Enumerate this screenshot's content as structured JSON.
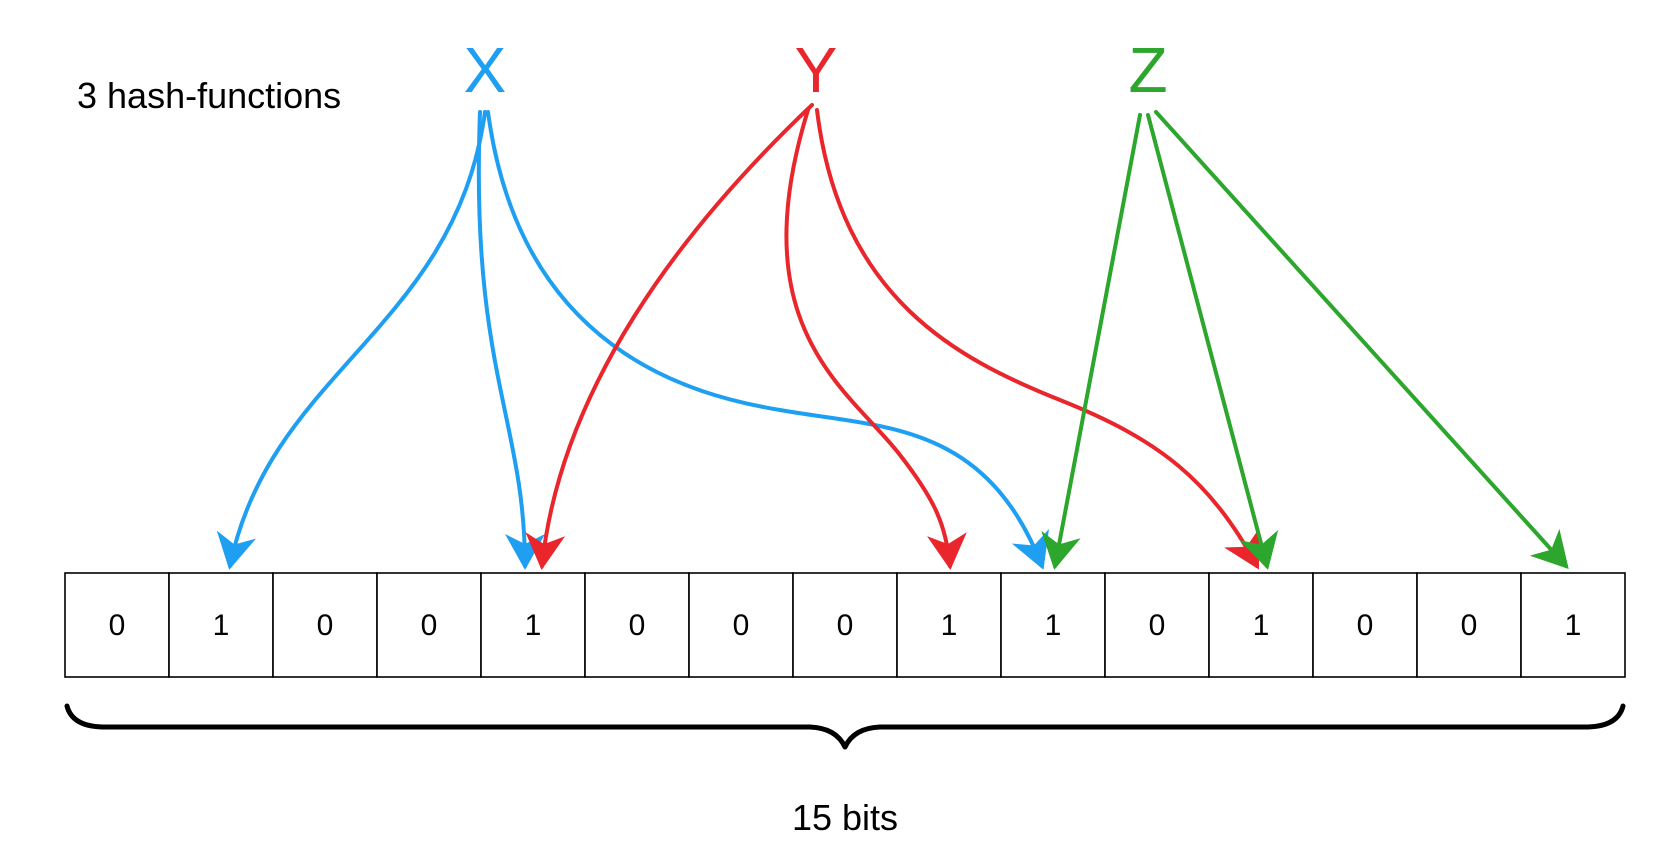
{
  "caption": "3 hash-functions",
  "size_label": "15 bits",
  "keys": [
    {
      "label": "X",
      "color": "#1e9ff2"
    },
    {
      "label": "Y",
      "color": "#e8262b"
    },
    {
      "label": "Z",
      "color": "#2ca62c"
    }
  ],
  "bits": [
    "0",
    "1",
    "0",
    "0",
    "1",
    "0",
    "0",
    "0",
    "1",
    "1",
    "0",
    "1",
    "0",
    "0",
    "1"
  ],
  "mappings": [
    {
      "key": "X",
      "bit_positions": [
        1,
        4,
        9
      ]
    },
    {
      "key": "Y",
      "bit_positions": [
        4,
        8,
        11
      ]
    },
    {
      "key": "Z",
      "bit_positions": [
        9,
        11,
        14
      ]
    }
  ]
}
